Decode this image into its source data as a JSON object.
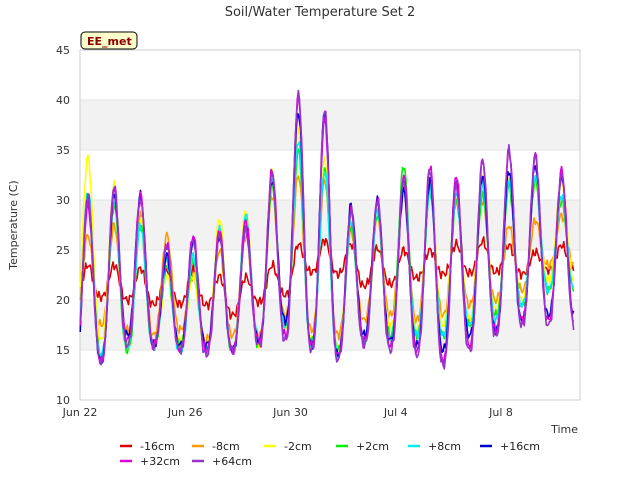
{
  "chart_data": {
    "type": "line",
    "title": "Soil/Water Temperature Set 2",
    "xlabel": "Time",
    "ylabel": "Temperature (C)",
    "site_badge": "EE_met",
    "x_start": "Jun 22",
    "x_range_days": [
      0,
      19
    ],
    "x_ticks": [
      {
        "day": 0,
        "label": "Jun 22"
      },
      {
        "day": 4,
        "label": "Jun 26"
      },
      {
        "day": 8,
        "label": "Jun 30"
      },
      {
        "day": 12,
        "label": "Jul 4"
      },
      {
        "day": 16,
        "label": "Jul 8"
      }
    ],
    "ylim": [
      10,
      45
    ],
    "y_ticks": [
      10,
      15,
      20,
      25,
      30,
      35,
      40,
      45
    ],
    "grid": "horizontal bands",
    "legend_position": "bottom",
    "day_centers": [
      0.3,
      1.3,
      2.3,
      3.3,
      4.3,
      5.3,
      6.3,
      7.3,
      8.3,
      9.3,
      10.3,
      11.3,
      12.3,
      13.3,
      14.3,
      15.3,
      16.3,
      17.3,
      18.3
    ],
    "series": [
      {
        "name": "-16cm",
        "color": "#dd0000",
        "peaks": [
          23.5,
          23.5,
          23.2,
          23.0,
          23.0,
          22.4,
          22.3,
          23.5,
          25.6,
          26.0,
          25.6,
          25.2,
          25.0,
          25.0,
          25.6,
          25.9,
          25.5,
          24.8,
          25.5
        ],
        "troughs": [
          20.2,
          20.3,
          20.0,
          19.6,
          19.6,
          19.5,
          18.5,
          19.8,
          20.5,
          22.8,
          22.6,
          21.4,
          21.6,
          22.2,
          22.6,
          22.7,
          22.8,
          22.6,
          23.0
        ]
      },
      {
        "name": "-8cm",
        "color": "#ff9900",
        "peaks": [
          26.5,
          27.5,
          28.5,
          26.5,
          22.5,
          25.0,
          26.5,
          30.5,
          32.5,
          32.0,
          27.0,
          28.5,
          31.0,
          31.0,
          30.0,
          30.0,
          27.5,
          28.0,
          28.5
        ],
        "troughs": [
          18.0,
          17.5,
          17.0,
          16.5,
          17.0,
          16.0,
          16.5,
          16.5,
          18.5,
          17.0,
          16.5,
          18.0,
          18.5,
          18.0,
          18.5,
          19.5,
          20.0,
          21.0,
          23.5
        ]
      },
      {
        "name": "-2cm",
        "color": "#ffff00",
        "peaks": [
          34.3,
          31.5,
          28.0,
          22.5,
          22.5,
          28.2,
          29.0,
          33.0,
          37.0,
          34.0,
          28.5,
          29.0,
          31.0,
          32.0,
          31.5,
          32.5,
          32.0,
          32.0,
          32.0
        ],
        "troughs": [
          17.0,
          16.0,
          15.5,
          15.5,
          16.0,
          15.5,
          15.0,
          15.5,
          17.5,
          16.0,
          15.0,
          16.0,
          17.5,
          17.0,
          17.5,
          18.0,
          19.0,
          20.0,
          22.0
        ]
      },
      {
        "name": "+2cm",
        "color": "#00ee00",
        "peaks": [
          30.5,
          29.5,
          27.5,
          23.5,
          24.0,
          26.5,
          28.0,
          31.5,
          35.0,
          33.0,
          27.5,
          28.5,
          33.5,
          31.0,
          30.0,
          30.5,
          31.5,
          32.0,
          30.0
        ],
        "troughs": [
          13.5,
          14.5,
          15.0,
          15.5,
          15.5,
          15.0,
          15.0,
          15.5,
          17.5,
          16.0,
          15.0,
          16.0,
          16.5,
          16.5,
          16.5,
          17.5,
          18.5,
          19.5,
          21.0
        ]
      },
      {
        "name": "+8cm",
        "color": "#00eeee",
        "peaks": [
          31.0,
          30.0,
          27.5,
          24.0,
          24.5,
          27.0,
          28.5,
          32.0,
          36.0,
          33.0,
          28.0,
          29.0,
          32.0,
          31.0,
          30.5,
          31.5,
          32.0,
          32.5,
          30.5
        ],
        "troughs": [
          12.8,
          14.5,
          15.5,
          15.5,
          15.0,
          15.0,
          15.0,
          16.0,
          17.5,
          15.5,
          14.5,
          16.0,
          16.0,
          16.5,
          16.5,
          17.5,
          18.0,
          19.5,
          21.0
        ]
      },
      {
        "name": "+16cm",
        "color": "#0000cc",
        "peaks": [
          30.0,
          30.5,
          30.5,
          24.5,
          26.0,
          26.5,
          27.5,
          32.0,
          38.8,
          38.8,
          29.5,
          30.0,
          31.0,
          32.0,
          32.0,
          32.5,
          33.0,
          33.5,
          32.5
        ],
        "troughs": [
          13.0,
          14.0,
          16.5,
          15.5,
          15.5,
          15.5,
          15.0,
          16.0,
          18.0,
          15.5,
          14.5,
          16.5,
          16.0,
          15.5,
          15.0,
          16.5,
          17.0,
          18.0,
          18.5
        ]
      },
      {
        "name": "+32cm",
        "color": "#dd00dd",
        "peaks": [
          29.5,
          31.0,
          30.5,
          25.5,
          26.5,
          27.0,
          28.0,
          33.0,
          40.5,
          38.0,
          29.0,
          30.0,
          32.5,
          33.5,
          32.5,
          34.0,
          35.0,
          34.5,
          33.0
        ],
        "troughs": [
          13.5,
          14.0,
          16.0,
          15.5,
          15.0,
          15.0,
          15.0,
          16.0,
          16.5,
          15.5,
          14.5,
          16.0,
          15.5,
          15.0,
          14.0,
          15.5,
          17.0,
          18.0,
          18.0
        ]
      },
      {
        "name": "+64cm",
        "color": "#9933cc",
        "peaks": [
          30.5,
          31.5,
          30.0,
          25.5,
          26.0,
          26.5,
          27.0,
          32.5,
          40.5,
          39.0,
          29.0,
          30.0,
          32.0,
          33.0,
          31.5,
          34.0,
          35.0,
          34.5,
          32.5
        ],
        "troughs": [
          13.0,
          13.8,
          15.5,
          15.5,
          15.0,
          14.5,
          15.0,
          15.5,
          16.0,
          15.0,
          14.0,
          15.5,
          15.0,
          14.5,
          13.5,
          15.0,
          16.5,
          17.5,
          17.5
        ]
      }
    ]
  }
}
